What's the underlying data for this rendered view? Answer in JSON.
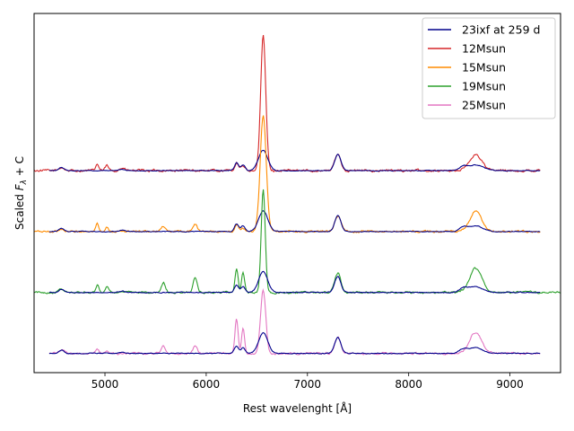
{
  "chart_data": {
    "type": "line",
    "title": "",
    "xlabel": "Rest wavelenght [Å]",
    "ylabel": "Scaled F_λ + C",
    "ylabel_parts": {
      "pre": "Scaled ",
      "symbol": "F",
      "sub": "λ",
      "post": " + C"
    },
    "xlim": [
      4300,
      9500
    ],
    "ylim": [
      -0.3,
      5.3
    ],
    "x_ticks": [
      5000,
      6000,
      7000,
      8000,
      9000
    ],
    "x_tick_labels": [
      "5000",
      "6000",
      "7000",
      "8000",
      "9000"
    ],
    "y_ticks_shown": false,
    "grid": false,
    "legend_position": "top-right",
    "observed": {
      "name": "23ixf at 259 d",
      "color": "#00008b",
      "x_range": [
        4450,
        9300
      ],
      "peaks": [
        {
          "center": 4570,
          "width": 25,
          "amp": 0.05
        },
        {
          "center": 5170,
          "width": 30,
          "amp": 0.02
        },
        {
          "center": 6300,
          "width": 20,
          "amp": 0.12
        },
        {
          "center": 6364,
          "width": 20,
          "amp": 0.09
        },
        {
          "center": 6563,
          "width": 45,
          "amp": 0.32
        },
        {
          "center": 7300,
          "width": 30,
          "amp": 0.25
        },
        {
          "center": 8540,
          "width": 40,
          "amp": 0.06
        },
        {
          "center": 8662,
          "width": 70,
          "amp": 0.09
        }
      ]
    },
    "offsets": [
      2.85,
      1.9,
      0.95,
      0.0
    ],
    "series": [
      {
        "name": "12Msun",
        "color": "#d62728",
        "x_range": [
          4300,
          9300
        ],
        "noise": 0.035,
        "peaks": [
          {
            "center": 4570,
            "width": 25,
            "amp": 0.05
          },
          {
            "center": 4924,
            "width": 15,
            "amp": 0.1
          },
          {
            "center": 5018,
            "width": 15,
            "amp": 0.08
          },
          {
            "center": 5170,
            "width": 25,
            "amp": 0.04
          },
          {
            "center": 6300,
            "width": 18,
            "amp": 0.12
          },
          {
            "center": 6364,
            "width": 18,
            "amp": 0.07
          },
          {
            "center": 6563,
            "width": 25,
            "amp": 2.1
          },
          {
            "center": 7300,
            "width": 30,
            "amp": 0.25
          },
          {
            "center": 8662,
            "width": 60,
            "amp": 0.25
          }
        ]
      },
      {
        "name": "15Msun",
        "color": "#ff8c00",
        "x_range": [
          4300,
          9300
        ],
        "noise": 0.03,
        "peaks": [
          {
            "center": 4570,
            "width": 25,
            "amp": 0.04
          },
          {
            "center": 4924,
            "width": 15,
            "amp": 0.12
          },
          {
            "center": 5018,
            "width": 15,
            "amp": 0.08
          },
          {
            "center": 5577,
            "width": 20,
            "amp": 0.08
          },
          {
            "center": 5890,
            "width": 20,
            "amp": 0.12
          },
          {
            "center": 6300,
            "width": 18,
            "amp": 0.1
          },
          {
            "center": 6364,
            "width": 18,
            "amp": 0.06
          },
          {
            "center": 6563,
            "width": 30,
            "amp": 1.8
          },
          {
            "center": 7300,
            "width": 30,
            "amp": 0.25
          },
          {
            "center": 8662,
            "width": 55,
            "amp": 0.32
          }
        ]
      },
      {
        "name": "19Msun",
        "color": "#2ca02c",
        "x_range": [
          4300,
          9500
        ],
        "noise": 0.03,
        "peaks": [
          {
            "center": 4570,
            "width": 25,
            "amp": 0.05
          },
          {
            "center": 4924,
            "width": 15,
            "amp": 0.12
          },
          {
            "center": 5018,
            "width": 15,
            "amp": 0.1
          },
          {
            "center": 5577,
            "width": 20,
            "amp": 0.15
          },
          {
            "center": 5890,
            "width": 20,
            "amp": 0.22
          },
          {
            "center": 6300,
            "width": 15,
            "amp": 0.38
          },
          {
            "center": 6364,
            "width": 15,
            "amp": 0.3
          },
          {
            "center": 6563,
            "width": 20,
            "amp": 1.6
          },
          {
            "center": 7300,
            "width": 30,
            "amp": 0.3
          },
          {
            "center": 8662,
            "width": 60,
            "amp": 0.38
          }
        ]
      },
      {
        "name": "25Msun",
        "color": "#e377c2",
        "x_range": [
          4450,
          9300
        ],
        "noise": 0.03,
        "peaks": [
          {
            "center": 4570,
            "width": 25,
            "amp": 0.05
          },
          {
            "center": 4924,
            "width": 15,
            "amp": 0.07
          },
          {
            "center": 5018,
            "width": 15,
            "amp": 0.05
          },
          {
            "center": 5577,
            "width": 20,
            "amp": 0.12
          },
          {
            "center": 5890,
            "width": 20,
            "amp": 0.12
          },
          {
            "center": 6300,
            "width": 15,
            "amp": 0.55
          },
          {
            "center": 6364,
            "width": 15,
            "amp": 0.38
          },
          {
            "center": 6563,
            "width": 25,
            "amp": 1.0
          },
          {
            "center": 7300,
            "width": 30,
            "amp": 0.25
          },
          {
            "center": 8662,
            "width": 60,
            "amp": 0.33
          }
        ]
      }
    ]
  }
}
